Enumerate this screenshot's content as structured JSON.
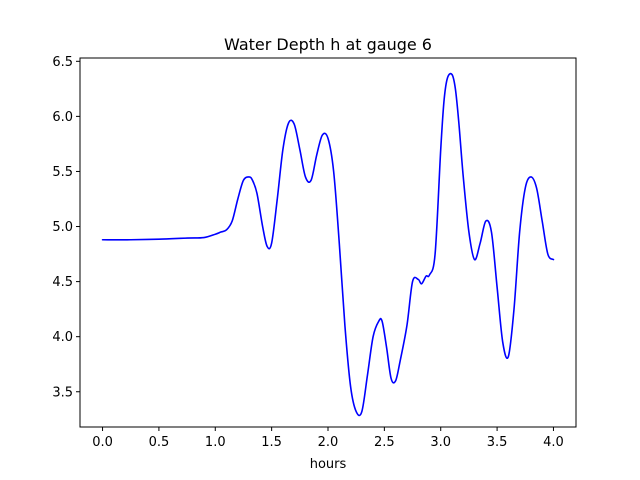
{
  "chart_data": {
    "type": "line",
    "title": "Water Depth h at gauge 6",
    "xlabel": "hours",
    "ylabel": "",
    "xlim": [
      -0.2,
      4.2
    ],
    "ylim": [
      3.18,
      6.53
    ],
    "xticks": [
      0.0,
      0.5,
      1.0,
      1.5,
      2.0,
      2.5,
      3.0,
      3.5,
      4.0
    ],
    "xtick_labels": [
      "0.0",
      "0.5",
      "1.0",
      "1.5",
      "2.0",
      "2.5",
      "3.0",
      "3.5",
      "4.0"
    ],
    "yticks": [
      3.5,
      4.0,
      4.5,
      5.0,
      5.5,
      6.0,
      6.5
    ],
    "ytick_labels": [
      "3.5",
      "4.0",
      "4.5",
      "5.0",
      "5.5",
      "6.0",
      "6.5"
    ],
    "grid": false,
    "series": [
      {
        "color": "#0000ff",
        "x": [
          0.0,
          0.25,
          0.5,
          0.75,
          0.9,
          1.0,
          1.05,
          1.1,
          1.15,
          1.2,
          1.25,
          1.3,
          1.33,
          1.37,
          1.42,
          1.46,
          1.5,
          1.55,
          1.6,
          1.65,
          1.7,
          1.75,
          1.8,
          1.85,
          1.9,
          1.95,
          2.0,
          2.05,
          2.1,
          2.15,
          2.2,
          2.25,
          2.3,
          2.35,
          2.4,
          2.45,
          2.48,
          2.52,
          2.56,
          2.6,
          2.64,
          2.7,
          2.75,
          2.8,
          2.83,
          2.87,
          2.9,
          2.95,
          3.0,
          3.03,
          3.06,
          3.1,
          3.13,
          3.16,
          3.2,
          3.25,
          3.3,
          3.35,
          3.4,
          3.45,
          3.5,
          3.55,
          3.6,
          3.65,
          3.7,
          3.75,
          3.8,
          3.85,
          3.9,
          3.95,
          4.0
        ],
        "y": [
          4.88,
          4.88,
          4.885,
          4.895,
          4.9,
          4.93,
          4.95,
          4.97,
          5.05,
          5.25,
          5.42,
          5.45,
          5.42,
          5.3,
          5.0,
          4.82,
          4.85,
          5.25,
          5.7,
          5.94,
          5.93,
          5.7,
          5.45,
          5.42,
          5.65,
          5.83,
          5.8,
          5.5,
          4.85,
          4.1,
          3.55,
          3.32,
          3.32,
          3.65,
          4.0,
          4.14,
          4.14,
          3.9,
          3.62,
          3.6,
          3.78,
          4.1,
          4.5,
          4.52,
          4.48,
          4.55,
          4.56,
          4.75,
          5.7,
          6.15,
          6.35,
          6.38,
          6.25,
          5.95,
          5.45,
          4.95,
          4.7,
          4.85,
          5.05,
          4.95,
          4.45,
          3.95,
          3.82,
          4.25,
          4.95,
          5.35,
          5.45,
          5.35,
          5.05,
          4.75,
          4.7
        ]
      }
    ]
  }
}
